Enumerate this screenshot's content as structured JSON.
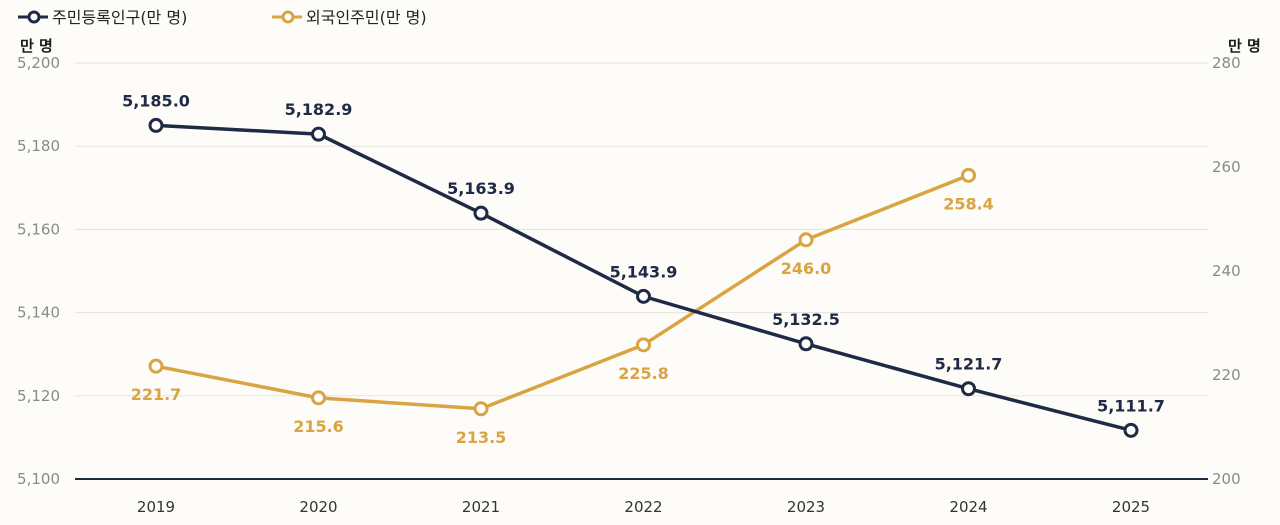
{
  "chart_data": {
    "type": "line",
    "x": [
      "2019",
      "2020",
      "2021",
      "2022",
      "2023",
      "2024",
      "2025"
    ],
    "series": [
      {
        "name": "주민등록인구(만 명)",
        "axis": "left",
        "color": "#1f2a44",
        "values": [
          5185.0,
          5182.9,
          5163.9,
          5143.9,
          5132.5,
          5121.7,
          5111.7
        ],
        "labels": [
          "5,185.0",
          "5,182.9",
          "5,163.9",
          "5,143.9",
          "5,132.5",
          "5,121.7",
          "5,111.7"
        ]
      },
      {
        "name": "외국인주민(만 명)",
        "axis": "right",
        "color": "#d9a441",
        "values": [
          221.7,
          215.6,
          213.5,
          225.8,
          246.0,
          258.4,
          null
        ],
        "labels": [
          "221.7",
          "215.6",
          "213.5",
          "225.8",
          "246.0",
          "258.4",
          null
        ]
      }
    ],
    "left_axis": {
      "unit": "만 명",
      "ylim": [
        5100,
        5200
      ],
      "ticks": [
        "5,100",
        "5,120",
        "5,140",
        "5,160",
        "5,180",
        "5,200"
      ]
    },
    "right_axis": {
      "unit": "만 명",
      "ylim": [
        200,
        280
      ],
      "ticks": [
        "200",
        "220",
        "240",
        "260",
        "280"
      ]
    },
    "grid": true,
    "legend": "top-left"
  }
}
